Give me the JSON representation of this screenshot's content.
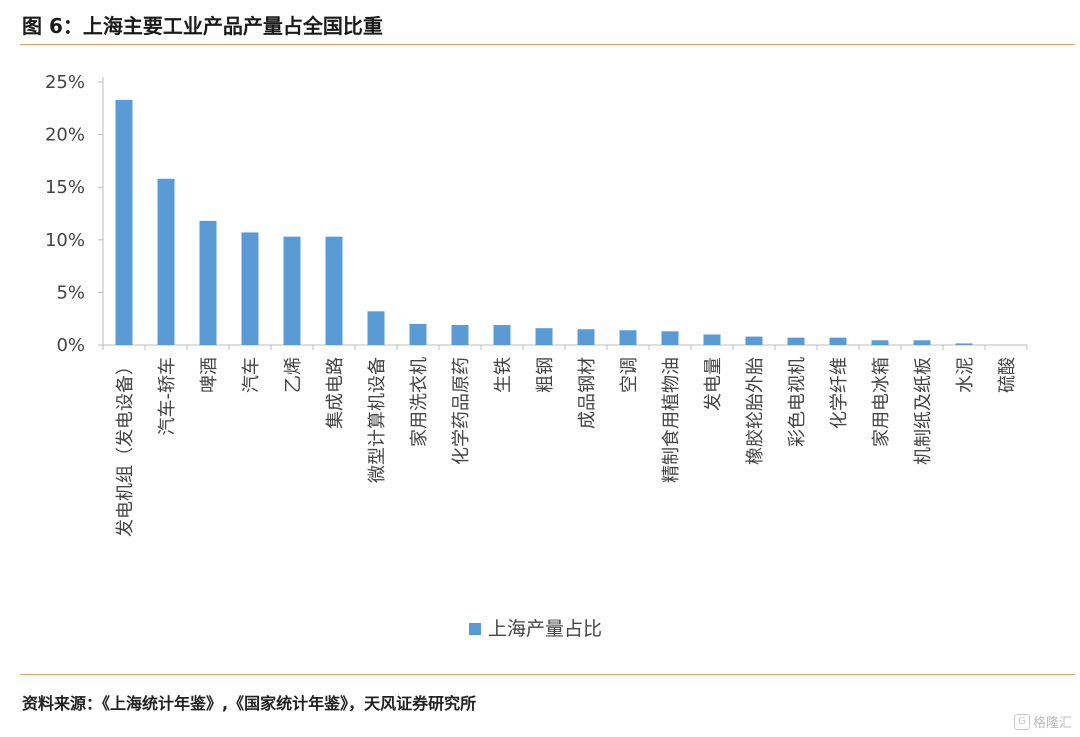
{
  "title": "图 6：上海主要工业产品产量占全国比重",
  "source": "资料来源：《上海统计年鉴》,《国家统计年鉴》，天风证券研究所",
  "watermark": "格隆汇",
  "chart_data": {
    "type": "bar",
    "categories": [
      "发电机组（发电设备）",
      "汽车-轿车",
      "啤酒",
      "汽车",
      "乙烯",
      "集成电路",
      "微型计算机设备",
      "家用洗衣机",
      "化学药品原药",
      "生铁",
      "粗钢",
      "成品钢材",
      "空调",
      "精制食用植物油",
      "发电量",
      "橡胶轮胎外胎",
      "彩色电视机",
      "化学纤维",
      "家用电冰箱",
      "机制纸及纸板",
      "水泥",
      "硫酸"
    ],
    "series": [
      {
        "name": "上海产量占比",
        "values": [
          23.3,
          15.8,
          11.8,
          10.7,
          10.3,
          10.3,
          3.2,
          2.0,
          1.9,
          1.9,
          1.6,
          1.5,
          1.4,
          1.3,
          1.0,
          0.8,
          0.7,
          0.7,
          0.45,
          0.45,
          0.15,
          0.0
        ]
      }
    ],
    "yticks": [
      "0%",
      "5%",
      "10%",
      "15%",
      "20%",
      "25%"
    ],
    "ylim": [
      0,
      25
    ],
    "color": "#5b9bd5",
    "legend": "bottom-center",
    "grid": false
  }
}
